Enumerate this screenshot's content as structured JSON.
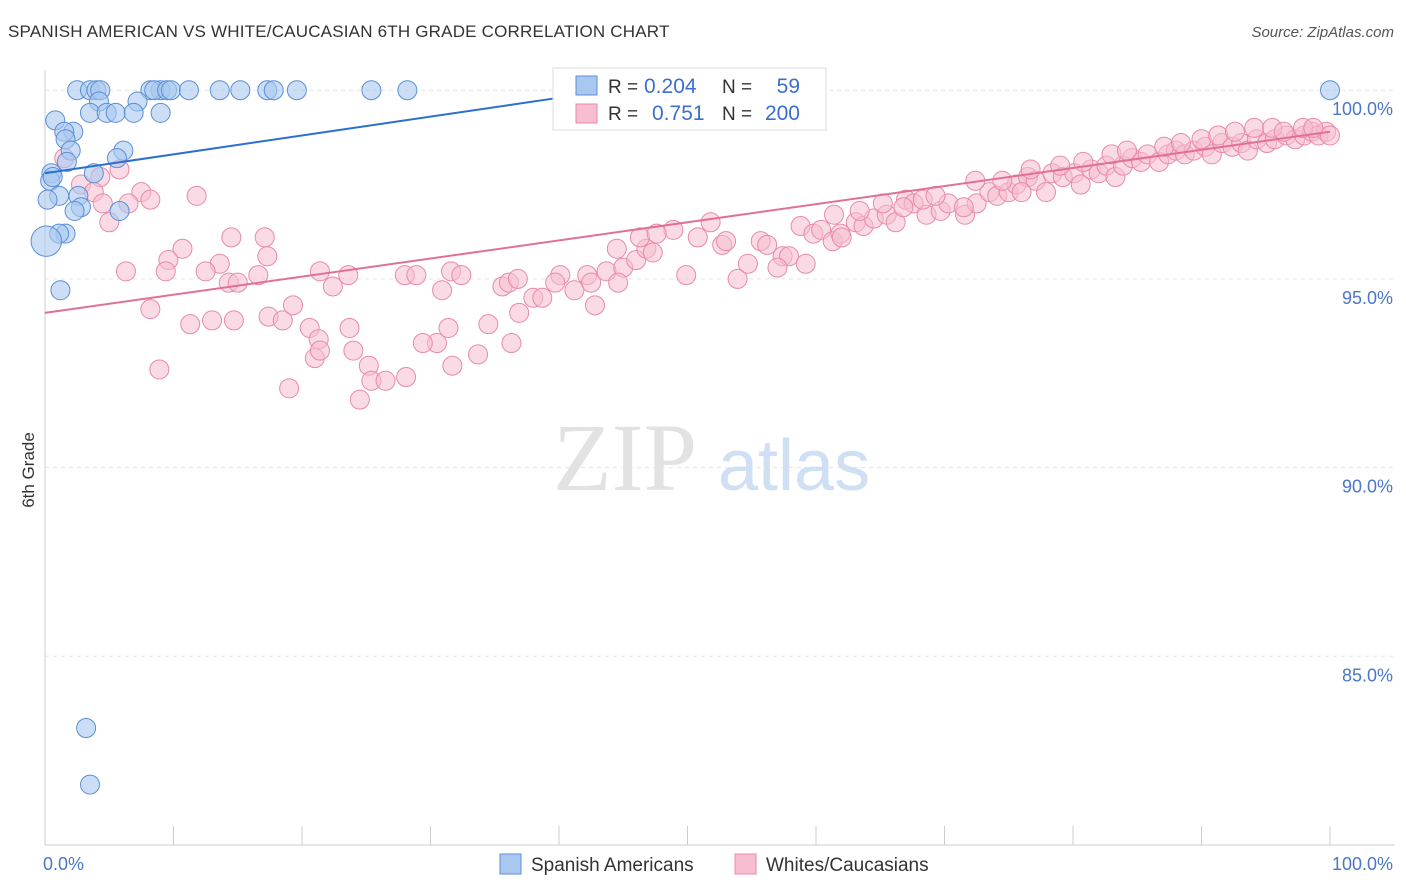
{
  "header": {
    "title": "SPANISH AMERICAN VS WHITE/CAUCASIAN 6TH GRADE CORRELATION CHART",
    "source": "Source: ZipAtlas.com"
  },
  "watermark": {
    "zip": "ZIP",
    "atlas": "atlas"
  },
  "colors": {
    "blue_fill": "#a9c8f0",
    "blue_stroke": "#5b8fd6",
    "blue_line": "#2b6fd0",
    "pink_fill": "#f6bed0",
    "pink_stroke": "#e88aa8",
    "pink_line": "#e0709a",
    "tick_label": "#4a77c8"
  },
  "legend": {
    "row1": {
      "r_label": "R =",
      "r_value": "0.204",
      "n_label": "N =",
      "n_value": "59"
    },
    "row2": {
      "r_label": "R =",
      "r_value": "0.751",
      "n_label": "N =",
      "n_value": "200"
    }
  },
  "chart_data": {
    "type": "scatter",
    "title": "SPANISH AMERICAN VS WHITE/CAUCASIAN 6TH GRADE CORRELATION CHART",
    "xlabel": "",
    "ylabel": "6th Grade",
    "xlim": [
      0,
      100
    ],
    "ylim": [
      80,
      100.8
    ],
    "x_tick_labels": [
      "0.0%",
      "100.0%"
    ],
    "y_ticks": [
      85,
      90,
      95,
      100
    ],
    "y_tick_labels": [
      "85.0%",
      "90.0%",
      "95.0%",
      "100.0%"
    ],
    "grid": true,
    "legend_position": "bottom-center",
    "series": [
      {
        "name": "Spanish Americans",
        "color": "#5b8fd6",
        "trend": {
          "x": [
            0,
            44
          ],
          "y": [
            97.8,
            100.0
          ]
        },
        "points": [
          [
            2.5,
            100
          ],
          [
            3.5,
            100
          ],
          [
            4.0,
            100
          ],
          [
            4.3,
            100
          ],
          [
            9.0,
            100
          ],
          [
            8.2,
            100
          ],
          [
            8.5,
            100
          ],
          [
            9.5,
            100
          ],
          [
            9.8,
            100
          ],
          [
            11.2,
            100
          ],
          [
            13.6,
            100
          ],
          [
            15.2,
            100
          ],
          [
            17.3,
            100
          ],
          [
            17.8,
            100
          ],
          [
            19.6,
            100
          ],
          [
            25.4,
            100
          ],
          [
            28.2,
            100
          ],
          [
            4.2,
            99.7
          ],
          [
            7.2,
            99.7
          ],
          [
            0.8,
            99.2
          ],
          [
            3.5,
            99.4
          ],
          [
            4.8,
            99.4
          ],
          [
            5.5,
            99.4
          ],
          [
            6.9,
            99.4
          ],
          [
            9.0,
            99.4
          ],
          [
            2.2,
            98.9
          ],
          [
            1.5,
            98.9
          ],
          [
            1.6,
            98.7
          ],
          [
            2.0,
            98.4
          ],
          [
            6.1,
            98.4
          ],
          [
            5.6,
            98.2
          ],
          [
            1.7,
            98.1
          ],
          [
            0.5,
            97.8
          ],
          [
            0.4,
            97.6
          ],
          [
            0.6,
            97.7
          ],
          [
            3.8,
            97.8
          ],
          [
            1.1,
            97.2
          ],
          [
            2.6,
            97.2
          ],
          [
            0.2,
            97.1
          ],
          [
            2.8,
            96.9
          ],
          [
            5.8,
            96.8
          ],
          [
            2.3,
            96.8
          ],
          [
            1.6,
            96.2
          ],
          [
            1.1,
            96.2
          ],
          [
            0.1,
            96.0
          ],
          [
            1.2,
            94.7
          ],
          [
            3.2,
            83.1
          ],
          [
            3.5,
            81.6
          ],
          [
            100,
            100
          ]
        ],
        "sizes": [
          10,
          10,
          10,
          10,
          10,
          10,
          10,
          10,
          10,
          10,
          10,
          10,
          10,
          10,
          10,
          10,
          10,
          10,
          10,
          10,
          10,
          10,
          10,
          10,
          10,
          10,
          10,
          10,
          10,
          10,
          10,
          10,
          10,
          10,
          10,
          10,
          10,
          10,
          10,
          10,
          10,
          10,
          10,
          10,
          16,
          10,
          10,
          10,
          10
        ]
      },
      {
        "name": "Whites/Caucasians",
        "color": "#e88aa8",
        "trend": {
          "x": [
            0,
            100
          ],
          "y": [
            94.1,
            98.9
          ]
        },
        "points": [
          [
            1.5,
            98.2
          ],
          [
            5.8,
            97.9
          ],
          [
            4.3,
            97.7
          ],
          [
            2.8,
            97.5
          ],
          [
            7.5,
            97.3
          ],
          [
            8.2,
            97.1
          ],
          [
            11.8,
            97.2
          ],
          [
            3.8,
            97.3
          ],
          [
            4.5,
            97.0
          ],
          [
            6.5,
            97.0
          ],
          [
            5.0,
            96.5
          ],
          [
            14.5,
            96.1
          ],
          [
            17.1,
            96.1
          ],
          [
            10.7,
            95.8
          ],
          [
            9.6,
            95.5
          ],
          [
            13.6,
            95.4
          ],
          [
            17.3,
            95.6
          ],
          [
            6.3,
            95.2
          ],
          [
            9.4,
            95.2
          ],
          [
            12.5,
            95.2
          ],
          [
            16.6,
            95.1
          ],
          [
            21.4,
            95.2
          ],
          [
            23.6,
            95.1
          ],
          [
            14.3,
            94.9
          ],
          [
            15.0,
            94.9
          ],
          [
            22.4,
            94.8
          ],
          [
            8.2,
            94.2
          ],
          [
            11.3,
            93.8
          ],
          [
            13.0,
            93.9
          ],
          [
            14.7,
            93.9
          ],
          [
            17.4,
            94.0
          ],
          [
            18.5,
            93.9
          ],
          [
            19.3,
            94.3
          ],
          [
            20.6,
            93.7
          ],
          [
            21.3,
            93.4
          ],
          [
            23.7,
            93.7
          ],
          [
            24.0,
            93.1
          ],
          [
            25.2,
            92.7
          ],
          [
            8.9,
            92.6
          ],
          [
            25.4,
            92.3
          ],
          [
            26.5,
            92.3
          ],
          [
            19.0,
            92.1
          ],
          [
            21.0,
            92.9
          ],
          [
            21.4,
            93.1
          ],
          [
            24.5,
            91.8
          ],
          [
            28.0,
            95.1
          ],
          [
            28.9,
            95.1
          ],
          [
            31.6,
            95.2
          ],
          [
            32.4,
            95.1
          ],
          [
            30.5,
            93.3
          ],
          [
            31.4,
            93.7
          ],
          [
            29.4,
            93.3
          ],
          [
            30.9,
            94.7
          ],
          [
            34.5,
            93.8
          ],
          [
            35.6,
            94.8
          ],
          [
            36.1,
            94.9
          ],
          [
            36.8,
            95.0
          ],
          [
            38.0,
            94.5
          ],
          [
            38.7,
            94.5
          ],
          [
            40.1,
            95.1
          ],
          [
            42.2,
            95.1
          ],
          [
            41.2,
            94.7
          ],
          [
            42.5,
            94.9
          ],
          [
            43.7,
            95.2
          ],
          [
            44.5,
            95.8
          ],
          [
            45.0,
            95.3
          ],
          [
            46.0,
            95.5
          ],
          [
            46.8,
            95.8
          ],
          [
            47.3,
            95.7
          ],
          [
            48.9,
            96.3
          ],
          [
            46.3,
            96.1
          ],
          [
            47.6,
            96.2
          ],
          [
            49.9,
            95.1
          ],
          [
            50.8,
            96.1
          ],
          [
            51.8,
            96.5
          ],
          [
            52.7,
            95.9
          ],
          [
            53.9,
            95.0
          ],
          [
            54.7,
            95.4
          ],
          [
            55.7,
            96.0
          ],
          [
            56.2,
            95.9
          ],
          [
            57.4,
            95.6
          ],
          [
            57.9,
            95.6
          ],
          [
            58.8,
            96.4
          ],
          [
            59.8,
            96.2
          ],
          [
            60.4,
            96.3
          ],
          [
            61.3,
            96.0
          ],
          [
            61.9,
            96.2
          ],
          [
            63.1,
            96.5
          ],
          [
            63.7,
            96.4
          ],
          [
            64.5,
            96.6
          ],
          [
            65.5,
            96.7
          ],
          [
            66.2,
            96.5
          ],
          [
            67.0,
            97.1
          ],
          [
            67.6,
            97.0
          ],
          [
            68.6,
            96.7
          ],
          [
            69.7,
            96.8
          ],
          [
            70.3,
            97.0
          ],
          [
            71.6,
            96.7
          ],
          [
            72.5,
            97.0
          ],
          [
            73.5,
            97.3
          ],
          [
            74.1,
            97.2
          ],
          [
            75.0,
            97.3
          ],
          [
            75.6,
            97.5
          ],
          [
            76.5,
            97.7
          ],
          [
            77.1,
            97.6
          ],
          [
            77.9,
            97.3
          ],
          [
            78.4,
            97.8
          ],
          [
            79.2,
            97.7
          ],
          [
            80.1,
            97.8
          ],
          [
            80.6,
            97.5
          ],
          [
            81.4,
            97.9
          ],
          [
            82.0,
            97.8
          ],
          [
            82.6,
            98.0
          ],
          [
            83.3,
            97.7
          ],
          [
            83.9,
            98.0
          ],
          [
            84.6,
            98.2
          ],
          [
            85.3,
            98.1
          ],
          [
            85.8,
            98.3
          ],
          [
            86.7,
            98.1
          ],
          [
            87.4,
            98.3
          ],
          [
            88.0,
            98.4
          ],
          [
            88.7,
            98.3
          ],
          [
            89.4,
            98.4
          ],
          [
            90.3,
            98.5
          ],
          [
            90.8,
            98.3
          ],
          [
            91.6,
            98.6
          ],
          [
            92.4,
            98.5
          ],
          [
            93.1,
            98.6
          ],
          [
            93.6,
            98.4
          ],
          [
            94.3,
            98.7
          ],
          [
            95.1,
            98.6
          ],
          [
            95.7,
            98.7
          ],
          [
            96.6,
            98.8
          ],
          [
            97.3,
            98.7
          ],
          [
            98.0,
            98.8
          ],
          [
            98.6,
            98.9
          ],
          [
            99.1,
            98.8
          ],
          [
            99.7,
            98.9
          ],
          [
            100.0,
            98.8
          ],
          [
            59.2,
            95.4
          ],
          [
            61.4,
            96.7
          ],
          [
            63.4,
            96.8
          ],
          [
            66.8,
            96.9
          ],
          [
            68.3,
            97.1
          ],
          [
            69.3,
            97.2
          ],
          [
            72.4,
            97.6
          ],
          [
            74.5,
            97.6
          ],
          [
            76.7,
            97.9
          ],
          [
            79.0,
            98.0
          ],
          [
            80.8,
            98.1
          ],
          [
            83.0,
            98.3
          ],
          [
            84.2,
            98.4
          ],
          [
            87.1,
            98.5
          ],
          [
            88.4,
            98.6
          ],
          [
            90.0,
            98.7
          ],
          [
            91.3,
            98.8
          ],
          [
            92.6,
            98.9
          ],
          [
            94.1,
            99.0
          ],
          [
            95.5,
            99.0
          ],
          [
            96.4,
            98.9
          ],
          [
            97.9,
            99.0
          ],
          [
            98.7,
            99.0
          ],
          [
            76.0,
            97.3
          ],
          [
            71.5,
            96.9
          ],
          [
            65.2,
            97.0
          ],
          [
            62.0,
            96.1
          ],
          [
            57.0,
            95.3
          ],
          [
            53.0,
            96.0
          ],
          [
            44.6,
            94.9
          ],
          [
            36.3,
            93.3
          ],
          [
            33.7,
            93.0
          ],
          [
            42.8,
            94.3
          ],
          [
            39.7,
            94.9
          ],
          [
            36.9,
            94.1
          ],
          [
            31.7,
            92.7
          ],
          [
            28.1,
            92.4
          ]
        ]
      }
    ]
  },
  "bottom_legend": {
    "item1": "Spanish Americans",
    "item2": "Whites/Caucasians"
  }
}
